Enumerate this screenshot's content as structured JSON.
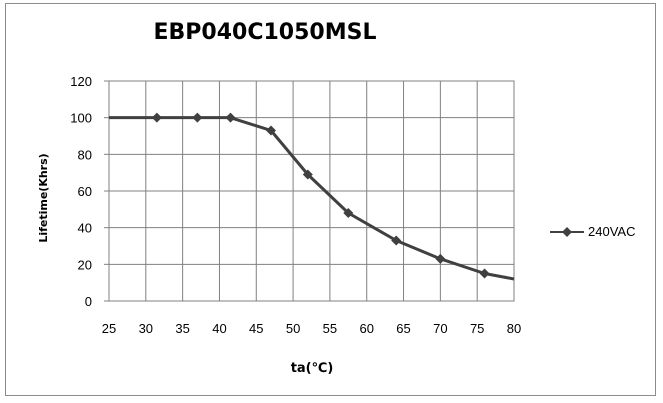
{
  "chart_data": {
    "type": "line",
    "title": "EBP040C1050MSL",
    "xlabel": "ta(℃)",
    "ylabel": "Lifetime(Khrs)",
    "xlim": [
      25,
      80
    ],
    "ylim": [
      0,
      120
    ],
    "x_ticks": [
      25,
      30,
      35,
      40,
      45,
      50,
      55,
      60,
      65,
      70,
      75,
      80
    ],
    "y_ticks": [
      0,
      20,
      40,
      60,
      80,
      100,
      120
    ],
    "grid": true,
    "legend_position": "right",
    "series": [
      {
        "name": "240VAC",
        "color": "#404040",
        "marker": "diamond",
        "x": [
          25,
          31.5,
          37,
          41.5,
          47,
          52,
          57.5,
          64,
          70,
          76,
          80
        ],
        "y": [
          100,
          100,
          100,
          100,
          93,
          69,
          48,
          33,
          23,
          15,
          12
        ],
        "markers_on": [
          false,
          true,
          true,
          true,
          true,
          true,
          true,
          true,
          true,
          true,
          false
        ]
      }
    ]
  }
}
